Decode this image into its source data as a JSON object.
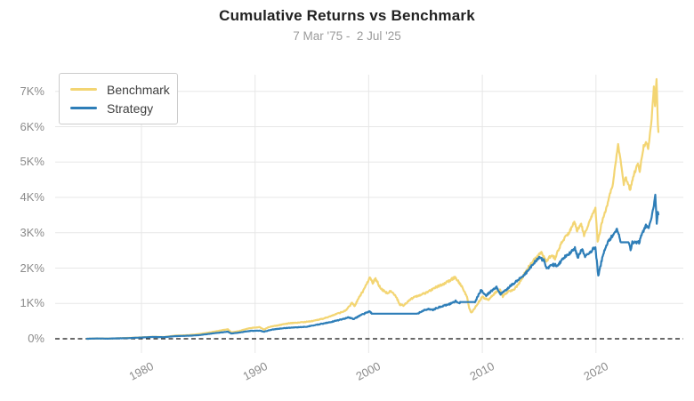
{
  "header": {
    "title": "Cumulative Returns vs Benchmark",
    "subtitle": "7 Mar '75 -  2 Jul '25"
  },
  "legend": {
    "items": [
      {
        "label": "Benchmark",
        "color": "#f3d573"
      },
      {
        "label": "Strategy",
        "color": "#2e7eb8"
      }
    ]
  },
  "colors": {
    "benchmark": "#f3d573",
    "strategy": "#2e7eb8",
    "gridline": "#e7e7e7",
    "zero_line": "#111111",
    "axis_text": "#8b8b8b",
    "title_text": "#222222",
    "subtitle_text": "#9b9b9b"
  },
  "chart_data": {
    "type": "line",
    "title": "Cumulative Returns vs Benchmark",
    "subtitle": "7 Mar '75 -  2 Jul '25",
    "xlabel": "",
    "ylabel": "",
    "grid": true,
    "legend_position": "top-left",
    "x_axis": {
      "range": [
        1972.4,
        2027.7
      ],
      "ticks": [
        {
          "v": 1980,
          "label": "1980"
        },
        {
          "v": 1990,
          "label": "1990"
        },
        {
          "v": 2000,
          "label": "2000"
        },
        {
          "v": 2010,
          "label": "2010"
        },
        {
          "v": 2020,
          "label": "2020"
        }
      ]
    },
    "y_axis": {
      "unit": "K%",
      "range": [
        0,
        7.5
      ],
      "ticks": [
        {
          "v": 0,
          "label": "0%"
        },
        {
          "v": 1,
          "label": "1K%"
        },
        {
          "v": 2,
          "label": "2K%"
        },
        {
          "v": 3,
          "label": "3K%"
        },
        {
          "v": 4,
          "label": "4K%"
        },
        {
          "v": 5,
          "label": "5K%"
        },
        {
          "v": 6,
          "label": "6K%"
        },
        {
          "v": 7,
          "label": "7K%"
        }
      ]
    },
    "zero_line": {
      "value": 0,
      "style": "dashed"
    },
    "series": [
      {
        "name": "Benchmark",
        "color": "#f3d573",
        "points_unit": "thousand_percent",
        "points": [
          [
            1975.2,
            0
          ],
          [
            1976,
            0.01
          ],
          [
            1977,
            0.005
          ],
          [
            1978,
            0.015
          ],
          [
            1979,
            0.025
          ],
          [
            1980,
            0.04
          ],
          [
            1981,
            0.055
          ],
          [
            1982,
            0.05
          ],
          [
            1983,
            0.09
          ],
          [
            1984,
            0.1
          ],
          [
            1985,
            0.13
          ],
          [
            1986,
            0.18
          ],
          [
            1987.6,
            0.27
          ],
          [
            1987.9,
            0.18
          ],
          [
            1988.5,
            0.21
          ],
          [
            1989.5,
            0.3
          ],
          [
            1990.4,
            0.33
          ],
          [
            1990.8,
            0.26
          ],
          [
            1991.2,
            0.33
          ],
          [
            1992,
            0.38
          ],
          [
            1993,
            0.44
          ],
          [
            1994,
            0.46
          ],
          [
            1995,
            0.5
          ],
          [
            1996,
            0.57
          ],
          [
            1997,
            0.68
          ],
          [
            1998.0,
            0.8
          ],
          [
            1998.55,
            1.02
          ],
          [
            1998.75,
            0.92
          ],
          [
            1999.2,
            1.2
          ],
          [
            1999.6,
            1.4
          ],
          [
            2000.1,
            1.75
          ],
          [
            2000.35,
            1.58
          ],
          [
            2000.6,
            1.7
          ],
          [
            2001.1,
            1.4
          ],
          [
            2001.7,
            1.28
          ],
          [
            2001.9,
            1.35
          ],
          [
            2002.3,
            1.25
          ],
          [
            2002.75,
            0.97
          ],
          [
            2003.1,
            0.94
          ],
          [
            2003.6,
            1.1
          ],
          [
            2004.2,
            1.2
          ],
          [
            2005,
            1.3
          ],
          [
            2006,
            1.47
          ],
          [
            2007,
            1.62
          ],
          [
            2007.6,
            1.74
          ],
          [
            2008.2,
            1.48
          ],
          [
            2008.65,
            1.18
          ],
          [
            2008.85,
            0.85
          ],
          [
            2009.05,
            0.73
          ],
          [
            2009.6,
            1.0
          ],
          [
            2010.0,
            1.18
          ],
          [
            2010.5,
            1.1
          ],
          [
            2011.2,
            1.32
          ],
          [
            2011.55,
            1.38
          ],
          [
            2011.8,
            1.2
          ],
          [
            2012.2,
            1.32
          ],
          [
            2012.8,
            1.4
          ],
          [
            2013.3,
            1.6
          ],
          [
            2013.9,
            1.95
          ],
          [
            2014.5,
            2.2
          ],
          [
            2015.2,
            2.45
          ],
          [
            2015.6,
            2.2
          ],
          [
            2016.1,
            2.38
          ],
          [
            2016.4,
            2.28
          ],
          [
            2017.0,
            2.75
          ],
          [
            2017.6,
            3.0
          ],
          [
            2018.1,
            3.3
          ],
          [
            2018.35,
            3.05
          ],
          [
            2018.7,
            3.25
          ],
          [
            2018.95,
            2.92
          ],
          [
            2019.5,
            3.35
          ],
          [
            2019.95,
            3.72
          ],
          [
            2020.15,
            2.72
          ],
          [
            2020.5,
            3.25
          ],
          [
            2021.0,
            3.8
          ],
          [
            2021.5,
            4.4
          ],
          [
            2021.95,
            5.5
          ],
          [
            2022.3,
            4.75
          ],
          [
            2022.45,
            4.35
          ],
          [
            2022.6,
            4.6
          ],
          [
            2023.0,
            4.22
          ],
          [
            2023.4,
            4.7
          ],
          [
            2023.7,
            4.95
          ],
          [
            2023.85,
            4.75
          ],
          [
            2024.2,
            5.45
          ],
          [
            2024.45,
            5.55
          ],
          [
            2024.6,
            5.35
          ],
          [
            2024.9,
            6.2
          ],
          [
            2025.1,
            7.1
          ],
          [
            2025.2,
            6.6
          ],
          [
            2025.33,
            7.35
          ],
          [
            2025.45,
            6.1
          ],
          [
            2025.5,
            5.85
          ]
        ]
      },
      {
        "name": "Strategy",
        "color": "#2e7eb8",
        "points_unit": "thousand_percent",
        "points": [
          [
            1975.2,
            0
          ],
          [
            1976,
            0.008
          ],
          [
            1977,
            0.004
          ],
          [
            1978,
            0.012
          ],
          [
            1979,
            0.02
          ],
          [
            1980,
            0.035
          ],
          [
            1981,
            0.05
          ],
          [
            1982,
            0.045
          ],
          [
            1983,
            0.075
          ],
          [
            1984,
            0.085
          ],
          [
            1985,
            0.1
          ],
          [
            1986,
            0.14
          ],
          [
            1987.6,
            0.2
          ],
          [
            1987.9,
            0.15
          ],
          [
            1988.5,
            0.17
          ],
          [
            1989.5,
            0.22
          ],
          [
            1990.4,
            0.23
          ],
          [
            1990.8,
            0.2
          ],
          [
            1991.5,
            0.26
          ],
          [
            1992.5,
            0.3
          ],
          [
            1993.5,
            0.32
          ],
          [
            1994.5,
            0.34
          ],
          [
            1995.5,
            0.4
          ],
          [
            1996.5,
            0.46
          ],
          [
            1997.5,
            0.54
          ],
          [
            1998.2,
            0.6
          ],
          [
            1998.7,
            0.56
          ],
          [
            1999.2,
            0.65
          ],
          [
            1999.7,
            0.72
          ],
          [
            2000.05,
            0.78
          ],
          [
            2000.3,
            0.71
          ],
          [
            2004.3,
            0.71
          ],
          [
            2004.8,
            0.8
          ],
          [
            2005.3,
            0.84
          ],
          [
            2005.6,
            0.81
          ],
          [
            2006.2,
            0.9
          ],
          [
            2006.8,
            0.95
          ],
          [
            2007.3,
            1.0
          ],
          [
            2007.65,
            1.07
          ],
          [
            2007.9,
            1.0
          ],
          [
            2008.1,
            1.04
          ],
          [
            2009.35,
            1.04
          ],
          [
            2009.9,
            1.38
          ],
          [
            2010.3,
            1.22
          ],
          [
            2010.9,
            1.38
          ],
          [
            2011.25,
            1.45
          ],
          [
            2011.6,
            1.27
          ],
          [
            2011.9,
            1.33
          ],
          [
            2012.5,
            1.5
          ],
          [
            2013.1,
            1.65
          ],
          [
            2013.8,
            1.85
          ],
          [
            2014.5,
            2.12
          ],
          [
            2014.95,
            2.3
          ],
          [
            2015.4,
            2.22
          ],
          [
            2015.7,
            1.97
          ],
          [
            2016.2,
            2.1
          ],
          [
            2016.6,
            2.06
          ],
          [
            2017.2,
            2.3
          ],
          [
            2017.9,
            2.48
          ],
          [
            2018.15,
            2.57
          ],
          [
            2018.4,
            2.3
          ],
          [
            2018.8,
            2.55
          ],
          [
            2019.0,
            2.32
          ],
          [
            2019.5,
            2.45
          ],
          [
            2019.95,
            2.6
          ],
          [
            2020.2,
            1.77
          ],
          [
            2020.6,
            2.35
          ],
          [
            2021.0,
            2.7
          ],
          [
            2021.5,
            2.95
          ],
          [
            2021.85,
            3.1
          ],
          [
            2022.2,
            2.73
          ],
          [
            2022.9,
            2.73
          ],
          [
            2023.05,
            2.52
          ],
          [
            2023.2,
            2.72
          ],
          [
            2023.8,
            2.73
          ],
          [
            2024.1,
            3.0
          ],
          [
            2024.4,
            3.2
          ],
          [
            2024.6,
            3.12
          ],
          [
            2024.9,
            3.45
          ],
          [
            2025.1,
            3.75
          ],
          [
            2025.22,
            4.05
          ],
          [
            2025.35,
            3.28
          ],
          [
            2025.45,
            3.6
          ],
          [
            2025.5,
            3.52
          ]
        ]
      }
    ]
  }
}
